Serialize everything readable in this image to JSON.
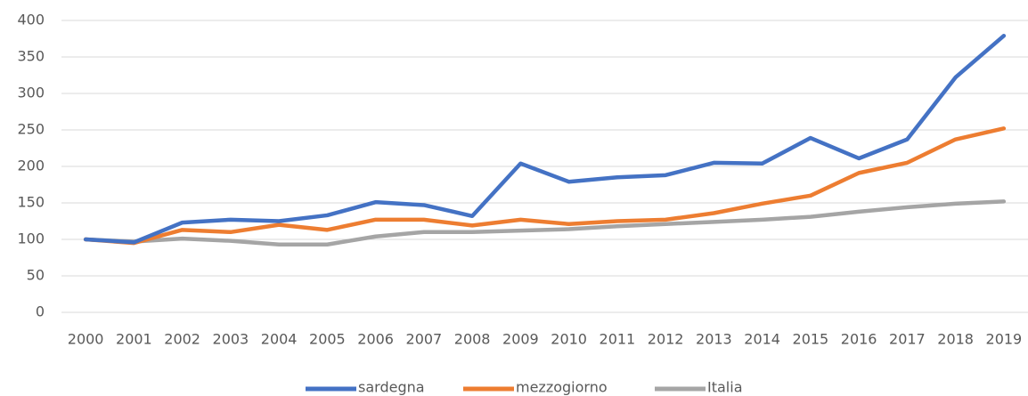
{
  "chart_data": {
    "type": "line",
    "categories": [
      "2000",
      "2001",
      "2002",
      "2003",
      "2004",
      "2005",
      "2006",
      "2007",
      "2008",
      "2009",
      "2010",
      "2011",
      "2012",
      "2013",
      "2014",
      "2015",
      "2016",
      "2017",
      "2018",
      "2019"
    ],
    "series": [
      {
        "name": "sardegna",
        "color": "#4472c4",
        "values": [
          100,
          96,
          123,
          127,
          125,
          133,
          151,
          147,
          132,
          204,
          179,
          185,
          188,
          205,
          204,
          239,
          211,
          237,
          322,
          379
        ]
      },
      {
        "name": "mezzogiorno",
        "color": "#ed7d31",
        "values": [
          100,
          95,
          113,
          110,
          120,
          113,
          127,
          127,
          119,
          127,
          121,
          125,
          127,
          136,
          149,
          160,
          191,
          205,
          237,
          252
        ]
      },
      {
        "name": "Italia",
        "color": "#a5a5a5",
        "values": [
          100,
          97,
          101,
          98,
          93,
          93,
          104,
          110,
          110,
          112,
          114,
          118,
          121,
          124,
          127,
          131,
          138,
          144,
          149,
          152
        ]
      }
    ],
    "ylim": [
      0,
      400
    ],
    "yticks": [
      0,
      50,
      100,
      150,
      200,
      250,
      300,
      350,
      400
    ],
    "grid": true,
    "legend": "bottom"
  }
}
